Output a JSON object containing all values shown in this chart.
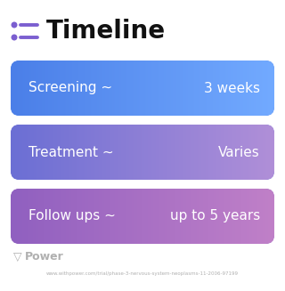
{
  "title": "Timeline",
  "background_color": "#ffffff",
  "rows": [
    {
      "label": "Screening ~",
      "value": "3 weeks",
      "color_left": "#4B7FE8",
      "color_right": "#72AAFF"
    },
    {
      "label": "Treatment ~",
      "value": "Varies",
      "color_left": "#6B6FD4",
      "color_right": "#B08FD8"
    },
    {
      "label": "Follow ups ~",
      "value": "up to 5 years",
      "color_left": "#9060C0",
      "color_right": "#C080C8"
    }
  ],
  "footer_logo": "Power",
  "footer_url": "www.withpower.com/trial/phase-3-nervous-system-neoplasms-11-2006-97199",
  "footer_color": "#b0b0b0",
  "title_fontsize": 20,
  "row_label_fontsize": 11,
  "row_value_fontsize": 11,
  "icon_color": "#7B5FD0"
}
